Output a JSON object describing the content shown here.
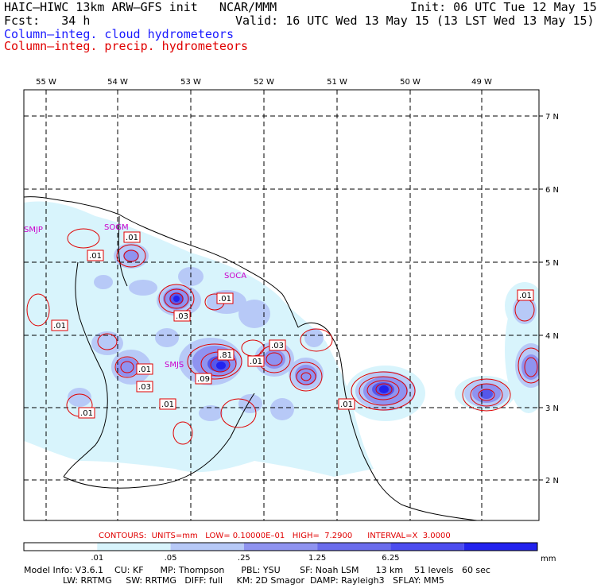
{
  "header": {
    "title": "HAIC–HIWC 13km ARW–GFS init   NCAR/MMM",
    "init": "Init: 06 UTC Tue 12 May 15",
    "fcst": "Fcst:   34 h",
    "valid": "Valid: 16 UTC Wed 13 May 15 (13 LST Wed 13 May 15)",
    "field1": "Column–integ. cloud hydrometeors",
    "field2": "Column–integ. precip. hydrometeors"
  },
  "map": {
    "lon_labels": [
      "55 W",
      "54 W",
      "53 W",
      "52 W",
      "51 W",
      "50 W",
      "49 W"
    ],
    "lat_labels": [
      "7 N",
      "6 N",
      "5 N",
      "4 N",
      "3 N",
      "2 N"
    ],
    "stations": [
      "SMJP",
      "SOCA",
      "SOGM",
      "SMJS"
    ],
    "contour_labels": [
      ".01",
      ".01",
      ".03",
      ".01",
      ".01",
      ".03",
      ".81",
      ".01",
      ".09",
      ".03",
      ".01",
      ".01",
      ".01",
      ".01",
      ".01"
    ]
  },
  "contour_info": "CONTOURS:  UNITS=mm   LOW= 0.10000E–01   HIGH=  7.2900      INTERVAL=X  3.0000",
  "colorbar": {
    "labels": [
      ".01",
      ".05",
      ".25",
      "1.25",
      "6.25"
    ],
    "units": "mm",
    "colors": [
      "#ffffff",
      "#d8f4fc",
      "#b7c9f7",
      "#8f93f0",
      "#6a6cec",
      "#4c4cef",
      "#2222ee"
    ]
  },
  "footer": {
    "line1": "Model Info: V3.6.1    CU: KF      MP: Thompson      PBL: YSU       SF: Noah LSM      13 km    51 levels   60 sec",
    "line2": "              LW: RRTMG     SW: RRTMG   DIFF: full     KM: 2D Smagor  DAMP: Rayleigh3   SFLAY: MM5"
  },
  "colors": {
    "cloud_title": "#1a1aff",
    "precip_title": "#e00000",
    "contour": "#e00000",
    "station": "#cc00cc"
  }
}
